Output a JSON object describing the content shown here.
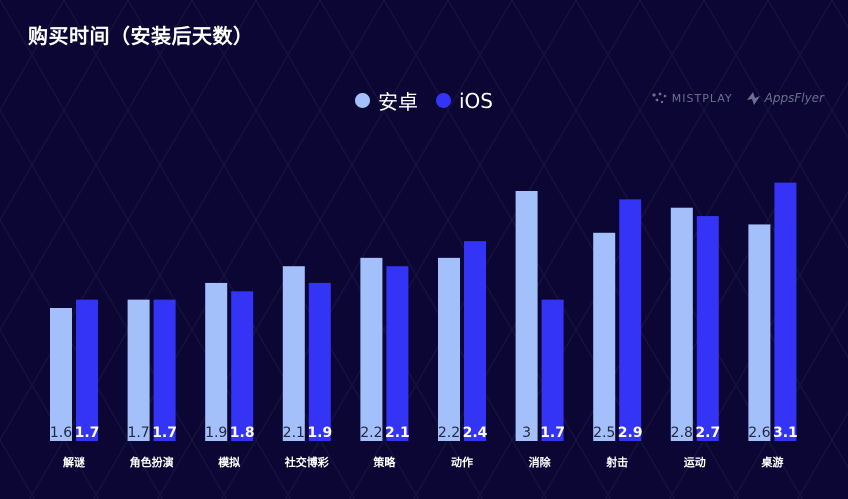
{
  "title": "购买时间（安装后天数）",
  "legend": [
    {
      "label": "安卓",
      "color": "#a4c0fb"
    },
    {
      "label": "iOS",
      "color": "#3434f7"
    }
  ],
  "watermark": {
    "mistplay": "MISTPLAY",
    "appsflyer": "AppsFlyer"
  },
  "colors": {
    "background": "#0b0633",
    "android": "#a4c0fb",
    "ios": "#3434f7",
    "android_label_text": "#27273f",
    "ios_label_text": "#ffffff"
  },
  "chart_data": {
    "type": "bar",
    "title": "购买时间（安装后天数）",
    "categories": [
      "解谜",
      "角色扮演",
      "模拟",
      "社交博彩",
      "策略",
      "动作",
      "消除",
      "射击",
      "运动",
      "桌游"
    ],
    "series": [
      {
        "name": "安卓",
        "values": [
          1.6,
          1.7,
          1.9,
          2.1,
          2.2,
          2.2,
          3,
          2.5,
          2.8,
          2.6
        ]
      },
      {
        "name": "iOS",
        "values": [
          1.7,
          1.7,
          1.8,
          1.9,
          2.1,
          2.4,
          1.7,
          2.9,
          2.7,
          3.1
        ]
      }
    ],
    "xlabel": "",
    "ylabel": "",
    "legend_position": "top-center",
    "grid": false,
    "data_labels": true
  }
}
